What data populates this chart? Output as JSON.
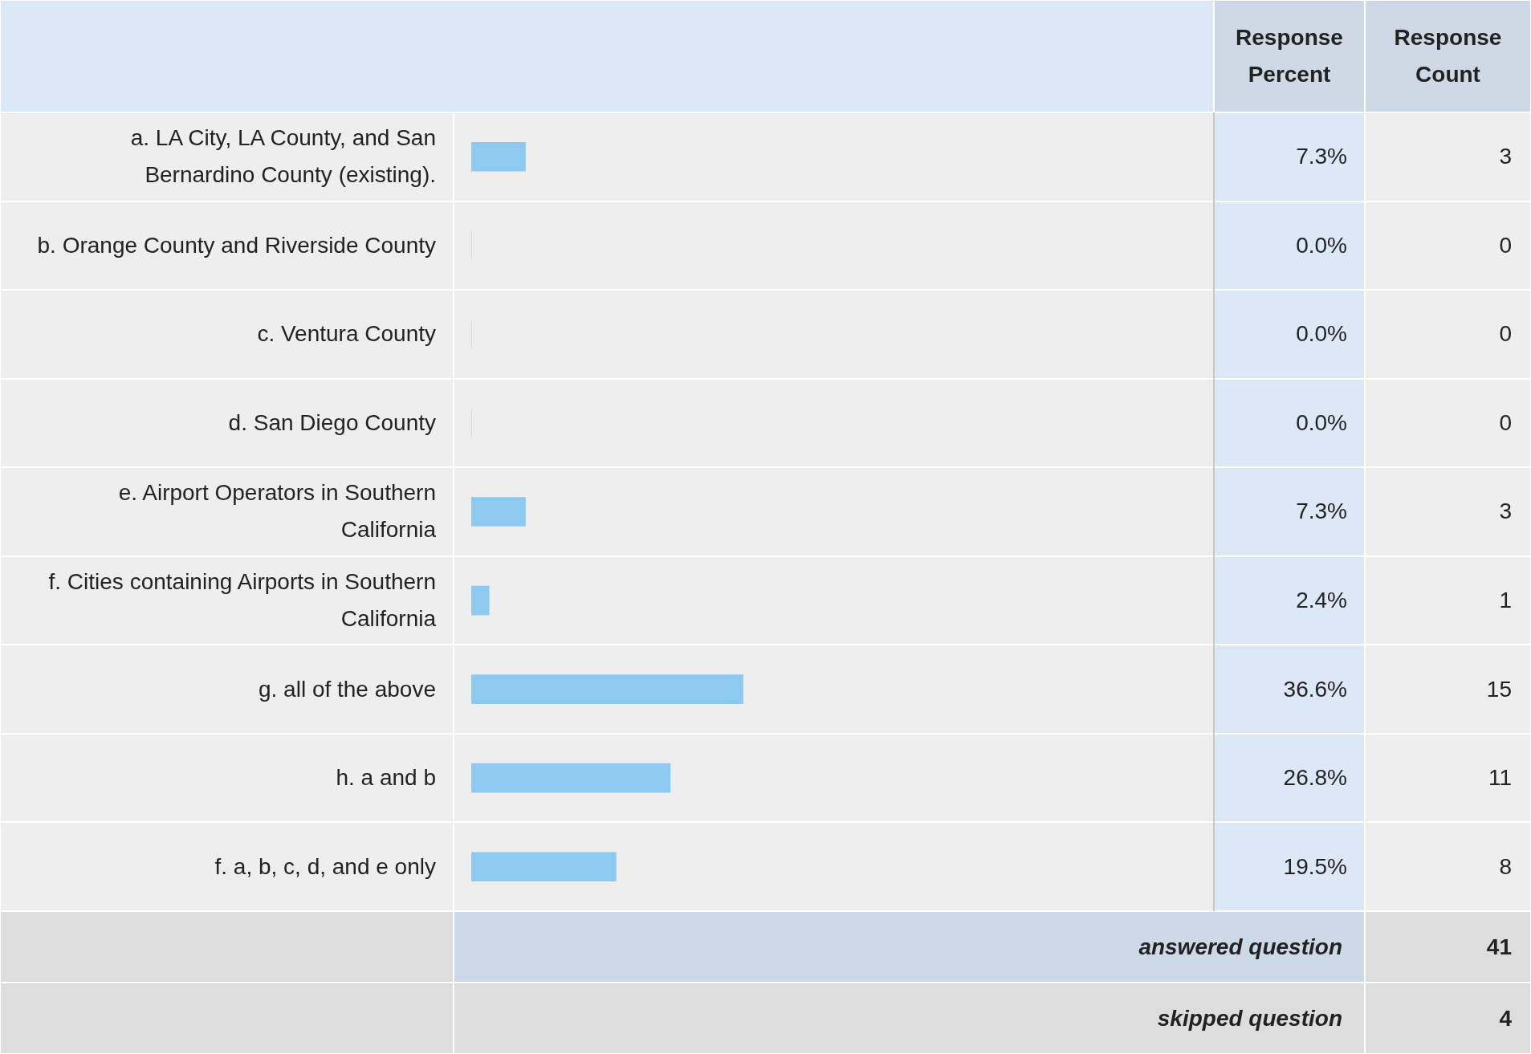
{
  "chart_data": {
    "type": "bar",
    "orientation": "horizontal",
    "categories": [
      "a. LA City, LA County, and San Bernardino County (existing).",
      "b. Orange County and Riverside County",
      "c. Ventura County",
      "d. San Diego County",
      "e. Airport Operators in Southern California",
      "f. Cities containing Airports in Southern California",
      "g. all of the above",
      "h. a and b",
      "f. a, b, c, d, and e only"
    ],
    "values": [
      7.3,
      0.0,
      0.0,
      0.0,
      7.3,
      2.4,
      36.6,
      26.8,
      19.5
    ],
    "value_labels": [
      "7.3%",
      "0.0%",
      "0.0%",
      "0.0%",
      "7.3%",
      "2.4%",
      "36.6%",
      "26.8%",
      "19.5%"
    ],
    "color": "#8ec9f2",
    "xlim": [
      0,
      100
    ],
    "tick_labels": false,
    "annotations": [
      "Response Percent",
      "Response Count",
      "answered question",
      "41",
      "skipped question",
      "4",
      "3",
      "0",
      "0",
      "0",
      "3",
      "1",
      "15",
      "11",
      "8"
    ]
  }
}
